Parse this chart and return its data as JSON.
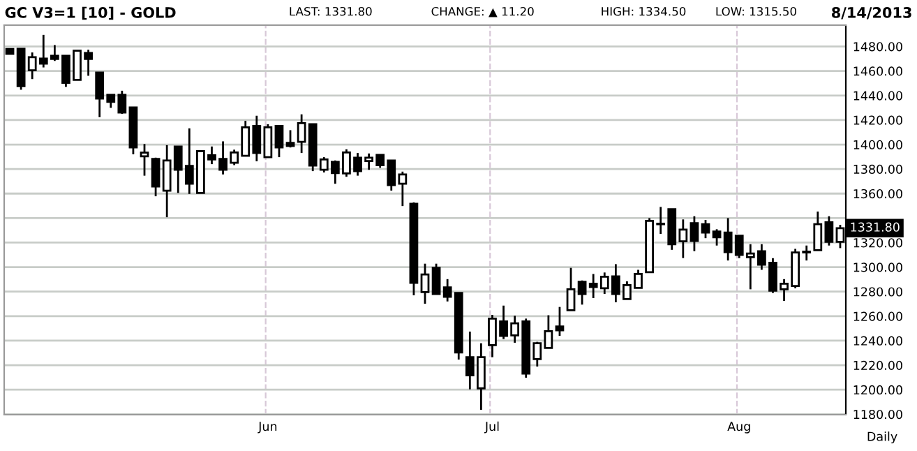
{
  "chart_data": {
    "type": "candlestick",
    "title": "GC V3=1 [10] - GOLD",
    "annotations": [
      "LAST: 1331.80",
      "CHANGE: ▲ 11.20",
      "HIGH: 1334.50",
      "LOW: 1315.50",
      "8/14/2013",
      "Daily",
      "1331.80"
    ],
    "categories": [
      null,
      null,
      null,
      null,
      null,
      null,
      null,
      null,
      null,
      null,
      null,
      null,
      null,
      null,
      null,
      null,
      null,
      null,
      null,
      null,
      null,
      null,
      null,
      "Jun",
      null,
      null,
      null,
      null,
      null,
      null,
      null,
      null,
      null,
      null,
      null,
      null,
      null,
      null,
      null,
      null,
      null,
      null,
      null,
      "Jul",
      null,
      null,
      null,
      null,
      null,
      null,
      null,
      null,
      null,
      null,
      null,
      null,
      null,
      null,
      null,
      null,
      null,
      null,
      null,
      null,
      null,
      "Aug",
      null,
      null,
      null,
      null,
      null,
      null,
      null,
      null,
      null
    ],
    "ohlc": [
      [
        1478,
        1478,
        1474,
        1474
      ],
      [
        1478.1,
        1478.1,
        1444.7,
        1447.7
      ],
      [
        1460.6,
        1475.1,
        1453.4,
        1471.3
      ],
      [
        1470.1,
        1489.5,
        1462.9,
        1466
      ],
      [
        1472.4,
        1481.1,
        1468.2,
        1469.8
      ],
      [
        1472.4,
        1472.4,
        1447,
        1450.4
      ],
      [
        1452.7,
        1476.6,
        1452.7,
        1476.6
      ],
      [
        1474.7,
        1477.3,
        1456.1,
        1469.8
      ],
      [
        1458.7,
        1458.7,
        1422.3,
        1437.5
      ],
      [
        1440.5,
        1440.5,
        1429.9,
        1434.8
      ],
      [
        1440.5,
        1443.9,
        1425,
        1426.1
      ],
      [
        1430.3,
        1430.3,
        1392,
        1397.6
      ],
      [
        1390.4,
        1400.4,
        1374.6,
        1393.4
      ],
      [
        1388.2,
        1389.3,
        1357.8,
        1365.8
      ],
      [
        1362.4,
        1399.5,
        1340.7,
        1387
      ],
      [
        1398.4,
        1398.4,
        1360.5,
        1379.4
      ],
      [
        1382.5,
        1413.2,
        1359.7,
        1368
      ],
      [
        1360.5,
        1394.6,
        1360.5,
        1394.6
      ],
      [
        1391.2,
        1398.4,
        1384,
        1387.8
      ],
      [
        1388.2,
        1402.6,
        1375.6,
        1379.4
      ],
      [
        1385.1,
        1395.8,
        1383.2,
        1393.5
      ],
      [
        1390.8,
        1419.3,
        1390.8,
        1414
      ],
      [
        1415.1,
        1423.5,
        1386.3,
        1393.1
      ],
      [
        1389.7,
        1416.6,
        1389.7,
        1414
      ],
      [
        1415.1,
        1415.1,
        1389.7,
        1397.6
      ],
      [
        1401.4,
        1411.7,
        1397.6,
        1398.8
      ],
      [
        1402.2,
        1424.6,
        1393.1,
        1417.4
      ],
      [
        1416.6,
        1416.6,
        1378.3,
        1382.8
      ],
      [
        1379.4,
        1389.7,
        1377.2,
        1387.8
      ],
      [
        1385.9,
        1387,
        1368,
        1376.8
      ],
      [
        1376.4,
        1396.1,
        1373.7,
        1393.5
      ],
      [
        1389.3,
        1393.1,
        1374.6,
        1378.3
      ],
      [
        1386.6,
        1392.7,
        1379.4,
        1389.3
      ],
      [
        1391.6,
        1391.6,
        1381,
        1383.2
      ],
      [
        1387,
        1387,
        1362.4,
        1366.9
      ],
      [
        1368,
        1377.9,
        1349.8,
        1375.6
      ],
      [
        1351.7,
        1352.8,
        1277,
        1287.2
      ],
      [
        1279.6,
        1302.8,
        1270.1,
        1294
      ],
      [
        1299.4,
        1302.8,
        1278.1,
        1278.1
      ],
      [
        1283.4,
        1290.2,
        1272,
        1275.8
      ],
      [
        1278.9,
        1278.9,
        1224.6,
        1230.3
      ],
      [
        1226.5,
        1247.4,
        1200.3,
        1211.7
      ],
      [
        1201.1,
        1237.9,
        1183.6,
        1226.5
      ],
      [
        1236.4,
        1261,
        1226.5,
        1258
      ],
      [
        1255.7,
        1268.6,
        1241.3,
        1243.9
      ],
      [
        1244.3,
        1260.3,
        1238.3,
        1254.2
      ],
      [
        1255.7,
        1258,
        1209.8,
        1213.2
      ],
      [
        1224.9,
        1239,
        1218.9,
        1237.9
      ],
      [
        1234,
        1260.7,
        1234,
        1247.7
      ],
      [
        1251.5,
        1267.5,
        1243.9,
        1248.5
      ],
      [
        1264.8,
        1299.4,
        1264.8,
        1281.9
      ],
      [
        1288,
        1289.1,
        1269.4,
        1278.1
      ],
      [
        1286.5,
        1294.4,
        1274.7,
        1283.8
      ],
      [
        1282.7,
        1295.6,
        1278.1,
        1292.1
      ],
      [
        1292.5,
        1302.4,
        1271.3,
        1278.1
      ],
      [
        1273.9,
        1288.4,
        1273.9,
        1285.3
      ],
      [
        1283.1,
        1297.8,
        1283.1,
        1294.4
      ],
      [
        1295.9,
        1340,
        1295.9,
        1337.7
      ],
      [
        1335.4,
        1349.1,
        1327.1,
        1335
      ],
      [
        1347.2,
        1347.2,
        1314.1,
        1318.7
      ],
      [
        1321,
        1338.9,
        1307.4,
        1330.6
      ],
      [
        1335.8,
        1341.5,
        1313,
        1321.4
      ],
      [
        1335,
        1338.5,
        1323.6,
        1328.2
      ],
      [
        1329,
        1330.9,
        1317.6,
        1324.4
      ],
      [
        1328.2,
        1340,
        1305.4,
        1312.3
      ],
      [
        1325.6,
        1325.6,
        1307.3,
        1310
      ],
      [
        1308.1,
        1318.7,
        1281.9,
        1311.1
      ],
      [
        1313,
        1318.7,
        1297.8,
        1302
      ],
      [
        1303.5,
        1307.3,
        1278.9,
        1280.8
      ],
      [
        1281.9,
        1290.2,
        1272.4,
        1286.5
      ],
      [
        1284.6,
        1314.9,
        1282.7,
        1311.9
      ],
      [
        1312.6,
        1317.6,
        1305.4,
        1312
      ],
      [
        1313.8,
        1345.3,
        1313.8,
        1335
      ],
      [
        1336.5,
        1341.5,
        1317.6,
        1320.6
      ],
      [
        1320.6,
        1334.5,
        1315.5,
        1331.8
      ]
    ],
    "ylim": [
      1179.6,
      1497.4
    ],
    "yticks": [
      {
        "value": 1180,
        "label": "1180.00"
      },
      {
        "value": 1200,
        "label": "1200.00"
      },
      {
        "value": 1220,
        "label": "1220.00"
      },
      {
        "value": 1240,
        "label": "1240.00"
      },
      {
        "value": 1260,
        "label": "1260.00"
      },
      {
        "value": 1280,
        "label": "1280.00"
      },
      {
        "value": 1300,
        "label": "1300.00"
      },
      {
        "value": 1320,
        "label": "1320.00"
      },
      {
        "value": 1340,
        "label": null
      },
      {
        "value": 1360,
        "label": "1360.00"
      },
      {
        "value": 1380,
        "label": "1380.00"
      },
      {
        "value": 1400,
        "label": "1400.00"
      },
      {
        "value": 1420,
        "label": "1420.00"
      },
      {
        "value": 1440,
        "label": "1440.00"
      },
      {
        "value": 1460,
        "label": "1460.00"
      },
      {
        "value": 1480,
        "label": "1480.00"
      }
    ],
    "grid": true,
    "legend": false
  }
}
